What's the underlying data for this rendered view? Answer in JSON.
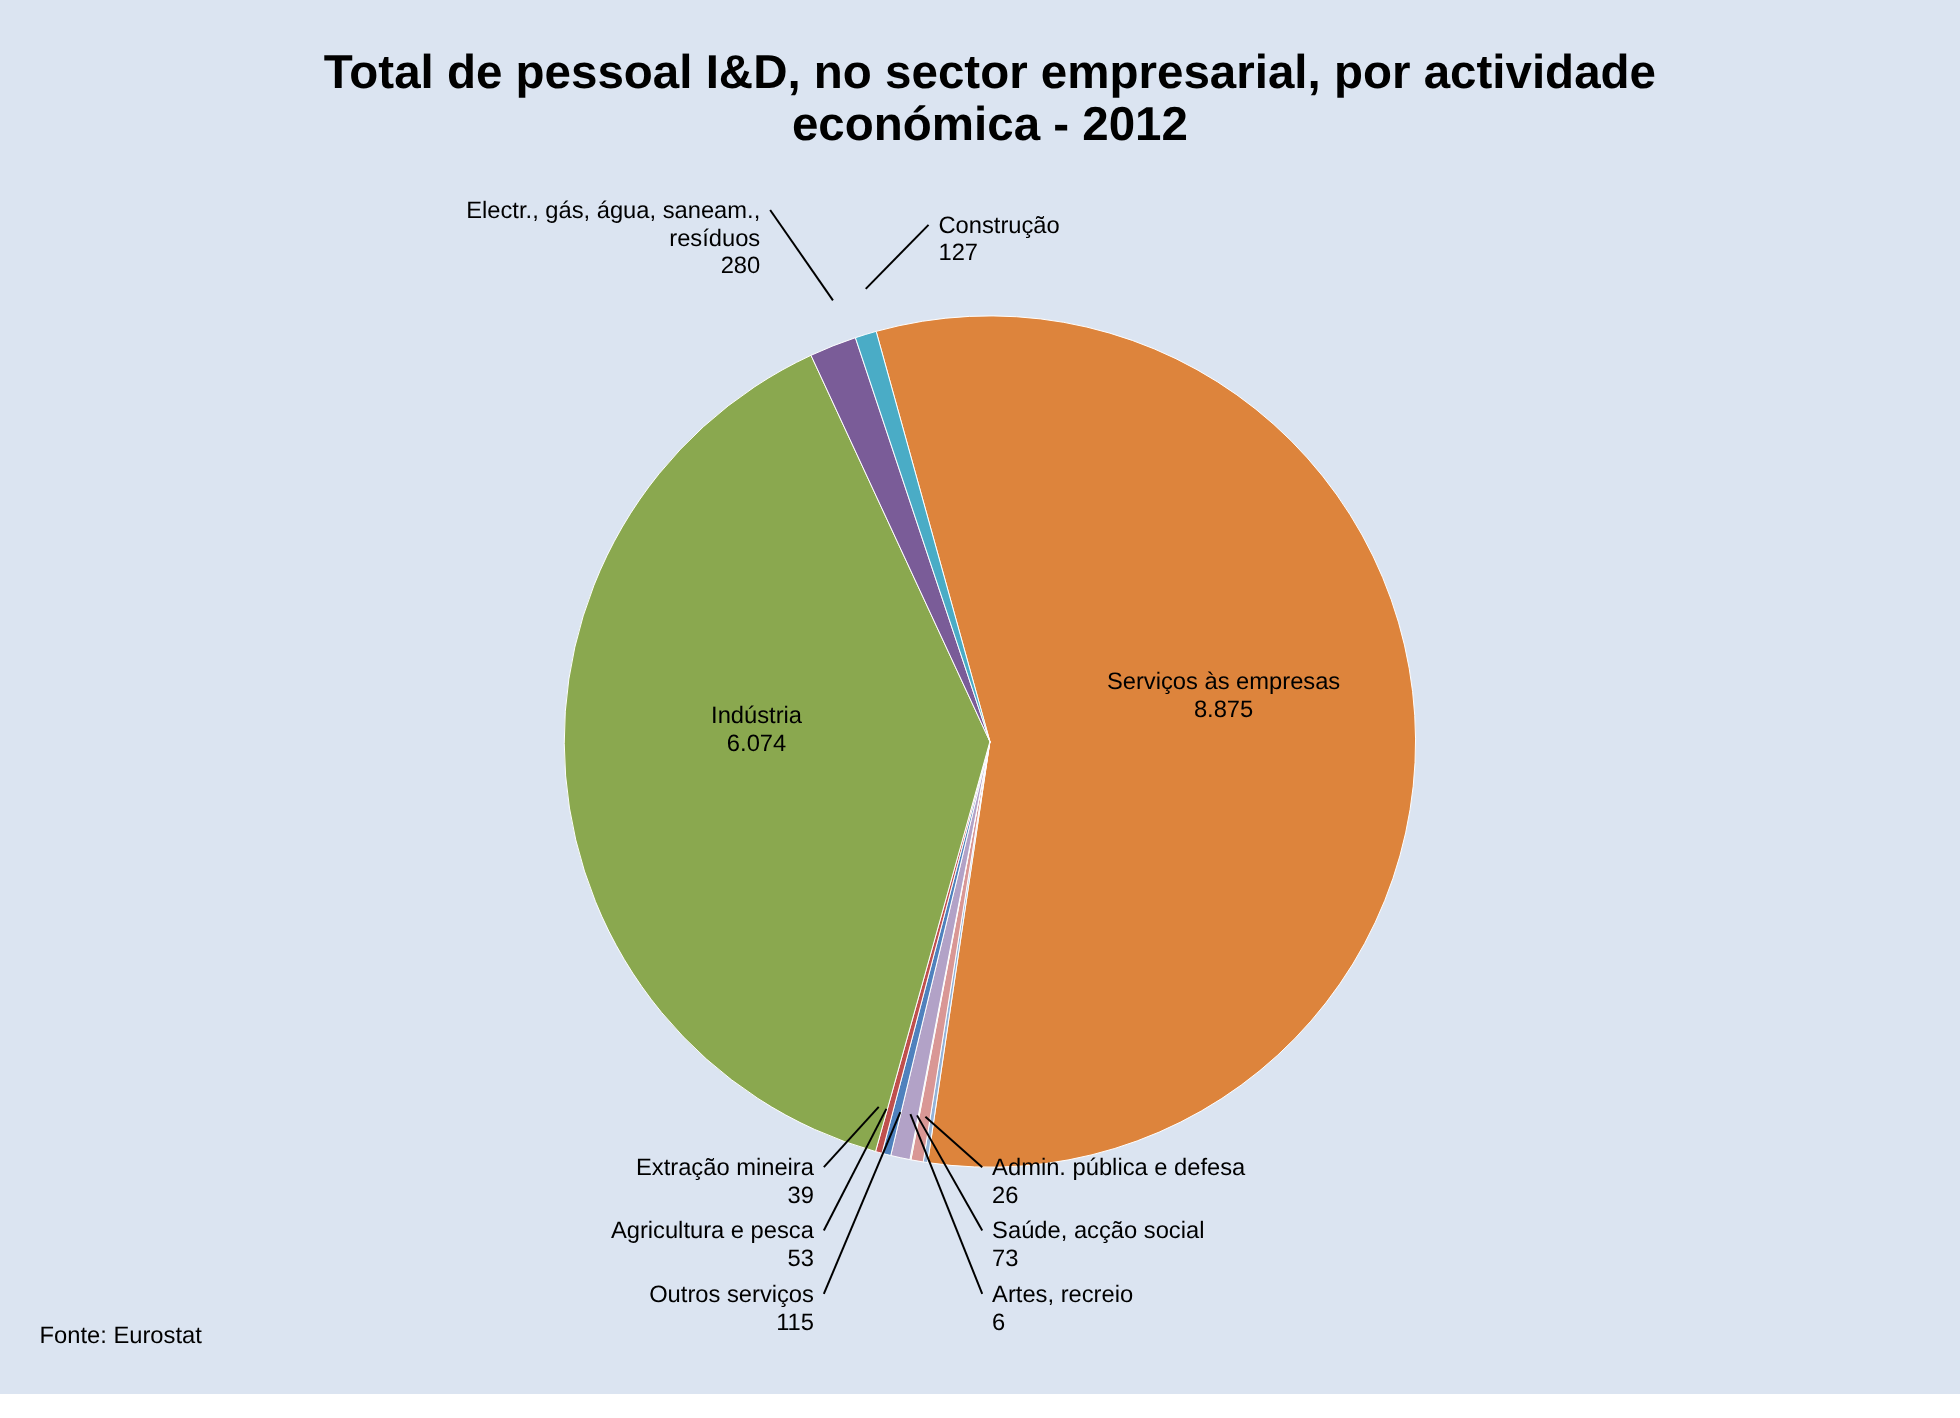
{
  "chart_data": {
    "type": "pie",
    "title": "Total de pessoal I&D, no sector empresarial, por actividade económica - 2012",
    "categories": [
      "Serviços às empresas",
      "Admin. pública e defesa",
      "Saúde, acção social",
      "Artes, recreio",
      "Outros serviços",
      "Agricultura e pesca",
      "Extração mineira",
      "Indústria",
      "Electr., gás, água, saneam., resíduos",
      "Construção"
    ],
    "values": [
      8875,
      26,
      73,
      6,
      115,
      53,
      39,
      6074,
      280,
      127
    ],
    "value_labels": [
      "8.875",
      "26",
      "73",
      "6",
      "115",
      "53",
      "39",
      "6.074",
      "280",
      "127"
    ],
    "colors": [
      "#dd843c",
      "#95b3d7",
      "#d99795",
      "#c3d69b",
      "#b2a2c7",
      "#4f81bd",
      "#c0504d",
      "#8aa84f",
      "#7a5c98",
      "#4aacc6"
    ],
    "annotations": [
      "Fonte: Eurostat"
    ]
  }
}
